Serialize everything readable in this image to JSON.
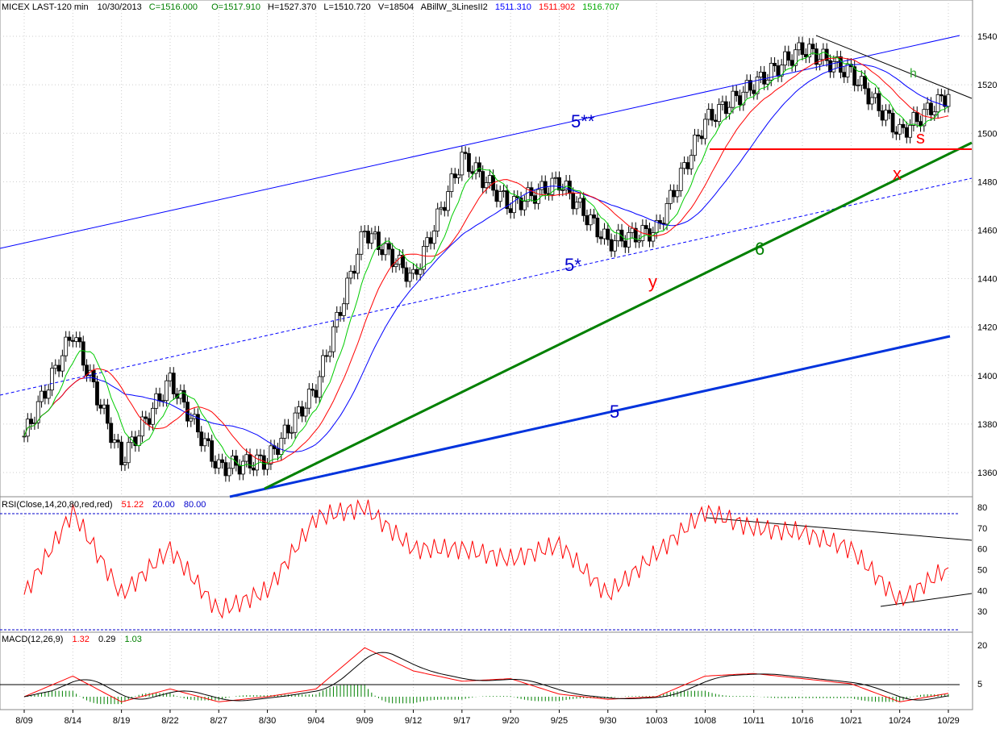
{
  "header": {
    "symbol": "MICEX LAST-120 min",
    "date": "10/30/2013",
    "close": "C=1516.000",
    "open": "O=1517.910",
    "high": "H=1527.370",
    "low": "L=1510.720",
    "volume": "V=18504",
    "indicator": "ABillW_3LinesII2",
    "ma_blue": "1511.310",
    "ma_red": "1511.902",
    "ma_green": "1516.707"
  },
  "rsi_header": {
    "label": "RSI(Close,14,20,80,red,red)",
    "value": "51.22",
    "low": "20.00",
    "high": "80.00"
  },
  "macd_header": {
    "label": "MACD(12,26,9)",
    "macd": "1.32",
    "signal": "0.29",
    "hist": "1.03"
  },
  "colors": {
    "up_text": "#008000",
    "blue_text": "#0000cc",
    "red": "#ff0000",
    "green_line": "#008000",
    "blue_line": "#0000ff",
    "ma_green": "#00cc00"
  },
  "chart_data": [
    {
      "type": "line",
      "name": "price",
      "ylim": [
        1350,
        1550
      ],
      "ylabels": [
        "1540",
        "1520",
        "1500",
        "1480",
        "1460",
        "1440",
        "1420",
        "1400",
        "1380",
        "1360"
      ],
      "xlabels": [
        "8/09",
        "8/14",
        "8/19",
        "8/22",
        "8/27",
        "8/30",
        "9/04",
        "9/09",
        "9/12",
        "9/17",
        "9/20",
        "9/25",
        "9/30",
        "10/03",
        "10/08",
        "10/11",
        "10/16",
        "10/21",
        "10/24",
        "10/29"
      ],
      "x": [
        "8/09",
        "8/14",
        "8/19",
        "8/22",
        "8/27",
        "8/30",
        "9/04",
        "9/09",
        "9/12",
        "9/17",
        "9/20",
        "9/25",
        "9/30",
        "10/03",
        "10/08",
        "10/11",
        "10/16",
        "10/21",
        "10/24",
        "10/29"
      ],
      "close": [
        1375,
        1418,
        1365,
        1398,
        1362,
        1365,
        1395,
        1460,
        1440,
        1490,
        1470,
        1480,
        1455,
        1460,
        1505,
        1520,
        1535,
        1525,
        1500,
        1516
      ],
      "annotations": [
        "5**",
        "5*",
        "5",
        "6",
        "y",
        "x",
        "s",
        "h"
      ]
    },
    {
      "type": "line",
      "name": "RSI",
      "ylim": [
        20,
        85
      ],
      "ylabels": [
        "80",
        "70",
        "60",
        "50",
        "40",
        "30"
      ],
      "values": [
        38,
        78,
        38,
        60,
        30,
        40,
        75,
        80,
        60,
        60,
        55,
        62,
        38,
        58,
        78,
        70,
        68,
        60,
        35,
        51
      ]
    },
    {
      "type": "line",
      "name": "MACD",
      "ylim": [
        -5,
        25
      ],
      "ylabels": [
        "20",
        "5"
      ],
      "values": [
        0,
        8,
        -2,
        3,
        -2,
        0,
        3,
        19,
        10,
        6,
        7,
        1,
        -1,
        0,
        8,
        9,
        7,
        5,
        -2,
        1.3
      ]
    }
  ]
}
